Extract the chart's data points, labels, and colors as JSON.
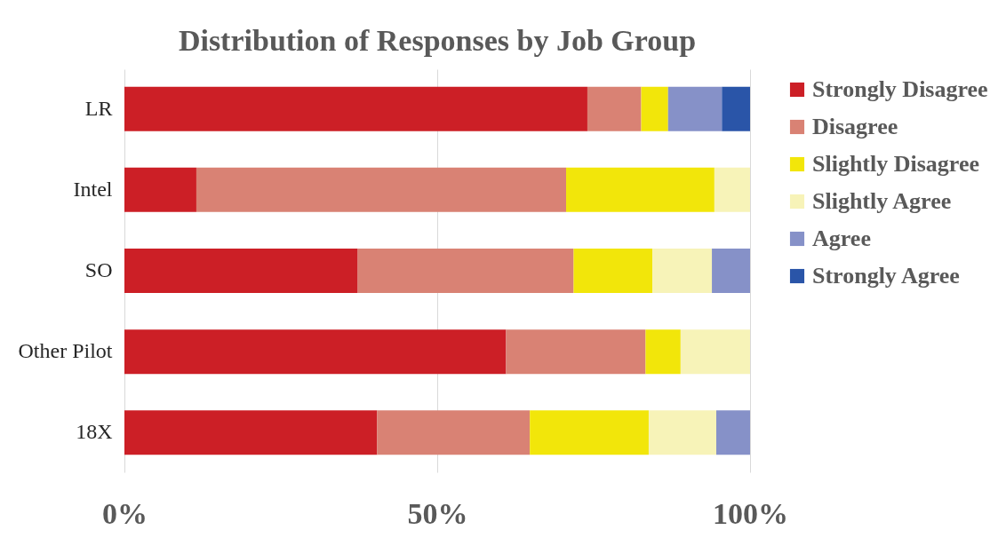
{
  "chart_data": {
    "type": "bar",
    "orientation": "horizontal",
    "stacked": true,
    "title": "Distribution of Responses by Job Group",
    "categories": [
      "LR",
      "Intel",
      "SO",
      "Other Pilot",
      "18X"
    ],
    "series": [
      {
        "name": "Strongly Disagree",
        "color": "#cc1f26",
        "values": [
          74.0,
          11.5,
          37.3,
          61.0,
          40.4
        ]
      },
      {
        "name": "Disagree",
        "color": "#d98274",
        "values": [
          8.6,
          59.1,
          34.5,
          22.3,
          24.4
        ]
      },
      {
        "name": "Slightly Disagree",
        "color": "#f2e60a",
        "values": [
          4.3,
          23.7,
          12.6,
          5.6,
          19.0
        ]
      },
      {
        "name": "Slightly Agree",
        "color": "#f7f3b8",
        "values": [
          null,
          5.7,
          9.5,
          11.1,
          10.8
        ]
      },
      {
        "name": "Agree",
        "color": "#8691c8",
        "values": [
          8.6,
          null,
          6.1,
          null,
          5.4
        ]
      },
      {
        "name": "Strongly Agree",
        "color": "#2a55a8",
        "values": [
          4.5,
          null,
          null,
          null,
          null
        ]
      }
    ],
    "xlim": [
      0,
      100
    ],
    "xticks": [
      {
        "value": 0,
        "label": "0%"
      },
      {
        "value": 50,
        "label": "50%"
      },
      {
        "value": 100,
        "label": "100%"
      }
    ],
    "grid": "x",
    "legend": "right"
  }
}
